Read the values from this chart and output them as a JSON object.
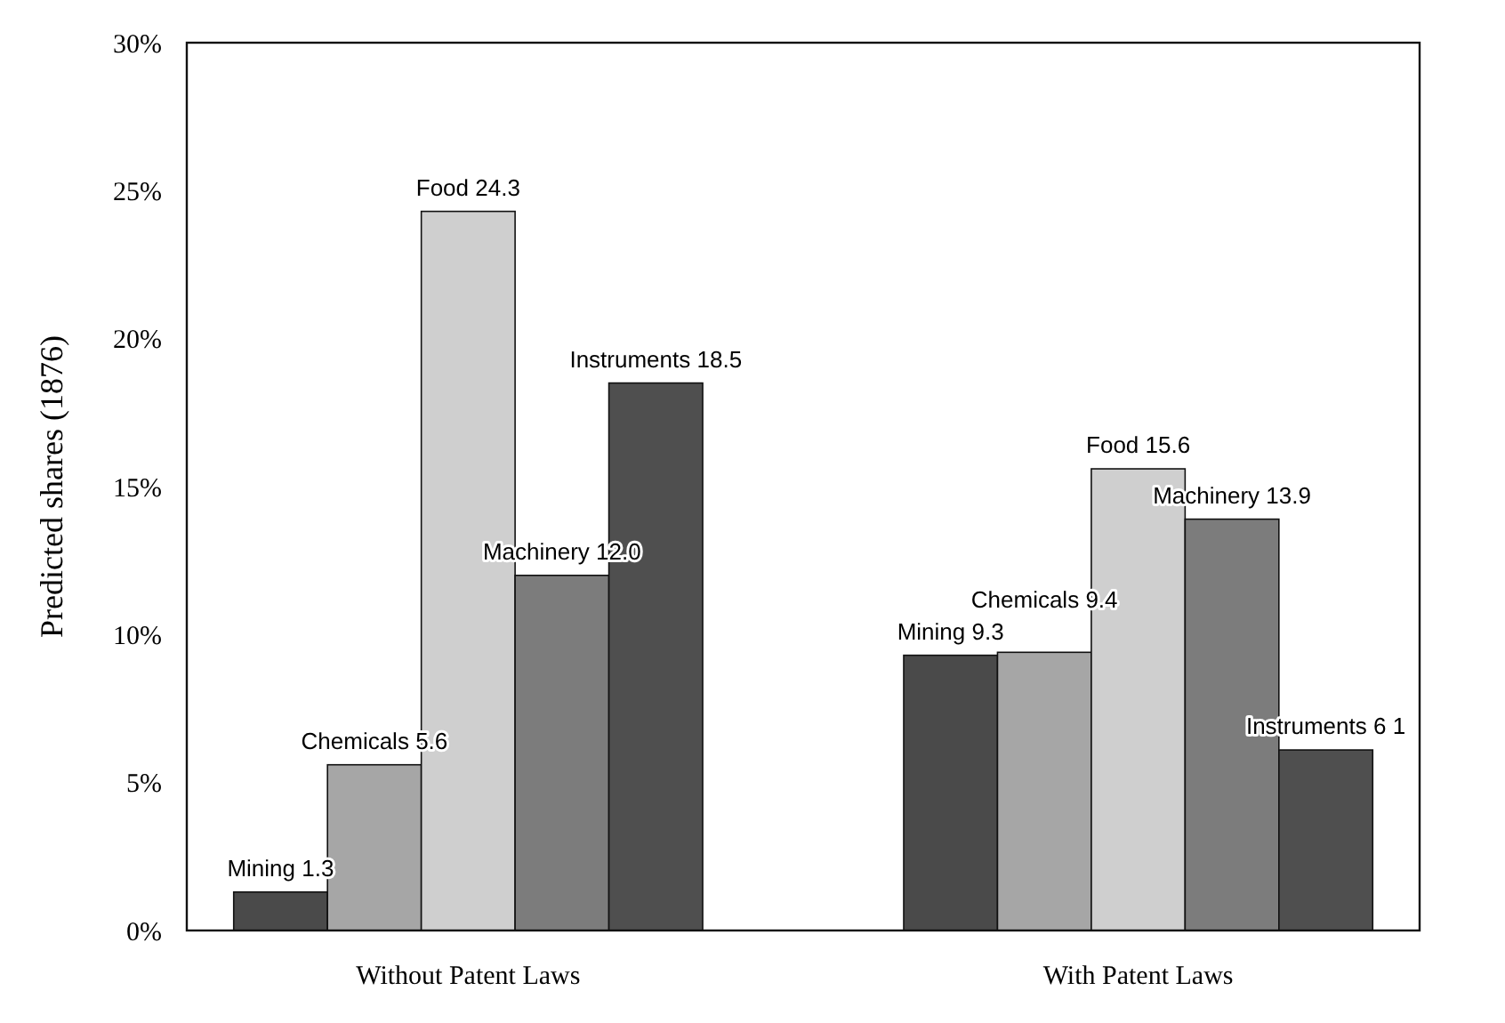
{
  "chart_data": {
    "type": "bar",
    "ylabel": "Predicted shares (1876)",
    "categories": [
      "Without Patent Laws",
      "With Patent Laws"
    ],
    "ylim": [
      0,
      30
    ],
    "yticks": [
      {
        "value": 0,
        "label": "0%"
      },
      {
        "value": 5,
        "label": "5%"
      },
      {
        "value": 10,
        "label": "10%"
      },
      {
        "value": 15,
        "label": "15%"
      },
      {
        "value": 20,
        "label": "20%"
      },
      {
        "value": 25,
        "label": "25%"
      },
      {
        "value": 30,
        "label": "30%"
      }
    ],
    "grid": false,
    "series": [
      {
        "name": "Mining",
        "color": "#4a4a4a",
        "values": [
          1.3,
          9.3
        ],
        "value_labels": [
          "1.3",
          "9.3"
        ]
      },
      {
        "name": "Chemicals",
        "color": "#a6a6a6",
        "values": [
          5.6,
          9.4
        ],
        "value_labels": [
          "5.6",
          "9.4"
        ]
      },
      {
        "name": "Food",
        "color": "#cfcfcf",
        "values": [
          24.3,
          15.6
        ],
        "value_labels": [
          "24.3",
          "15.6"
        ]
      },
      {
        "name": "Machinery",
        "color": "#7c7c7c",
        "values": [
          12.0,
          13.9
        ],
        "value_labels": [
          "12.0",
          "13.9"
        ]
      },
      {
        "name": "Instruments",
        "color": "#4f4f4f",
        "values": [
          18.5,
          6.1
        ],
        "value_labels": [
          "18.5",
          "6 1"
        ]
      }
    ]
  }
}
